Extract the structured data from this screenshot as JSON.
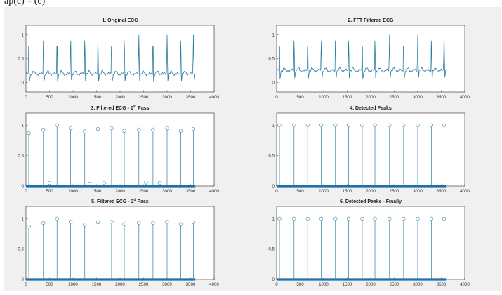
{
  "caption": "ap(c) – (e)",
  "chart_data": [
    {
      "type": "line",
      "title": "1. Original ECG",
      "xlim": [
        0,
        4000
      ],
      "ylim": [
        -0.2,
        1.2
      ],
      "xticks": [
        "0",
        "500",
        "1000",
        "1500",
        "2000",
        "2500",
        "3000",
        "3500",
        "4000"
      ],
      "yticks": [
        "0",
        "0.5",
        "1"
      ],
      "baseline": 0.18,
      "peaks_x": [
        60,
        370,
        660,
        950,
        1250,
        1530,
        1820,
        2090,
        2400,
        2700,
        3000,
        3290,
        3560
      ],
      "peak_value": 1.0,
      "x_end": 3600,
      "color": "#2a7d9e"
    },
    {
      "type": "line",
      "title": "2. FFT Filtered ECG",
      "xlim": [
        0,
        4000
      ],
      "ylim": [
        -0.2,
        1.2
      ],
      "xticks": [
        "0",
        "500",
        "1000",
        "1500",
        "2000",
        "2500",
        "3000",
        "3500",
        "4000"
      ],
      "yticks": [
        "0",
        "0.5",
        "1"
      ],
      "baseline": 0.25,
      "peaks_x": [
        60,
        370,
        660,
        950,
        1250,
        1530,
        1820,
        2090,
        2400,
        2700,
        3000,
        3290,
        3560
      ],
      "peak_value": 1.0,
      "x_end": 3600,
      "color": "#2a7d9e"
    },
    {
      "type": "scatter",
      "title": "3. Filtered ECG - 1st Pass",
      "title_main": "3. Filtered ECG - 1",
      "title_sup": "st",
      "title_tail": " Pass",
      "xlim": [
        0,
        4000
      ],
      "ylim": [
        0,
        1.2
      ],
      "xticks": [
        "0",
        "500",
        "1000",
        "1500",
        "2000",
        "2500",
        "3000",
        "3500",
        "4000"
      ],
      "yticks": [
        "0",
        "0.5",
        "1"
      ],
      "x": [
        60,
        370,
        500,
        660,
        950,
        1250,
        1350,
        1530,
        1660,
        1820,
        2090,
        2400,
        2550,
        2700,
        2840,
        3000,
        3290,
        3560
      ],
      "y": [
        0.87,
        0.93,
        0.05,
        1.0,
        0.95,
        0.9,
        0.04,
        0.94,
        0.05,
        0.95,
        0.91,
        0.93,
        0.06,
        0.93,
        0.05,
        0.95,
        0.91,
        0.94
      ],
      "x_end": 3600,
      "color": "#2a7d9e"
    },
    {
      "type": "scatter",
      "title": "4. Detected Peaks",
      "xlim": [
        0,
        4000
      ],
      "ylim": [
        0,
        1.2
      ],
      "xticks": [
        "0",
        "500",
        "1000",
        "1500",
        "2000",
        "2500",
        "3000",
        "3500",
        "4000"
      ],
      "yticks": [
        "0",
        "0.5",
        "1"
      ],
      "x": [
        60,
        370,
        660,
        950,
        1250,
        1530,
        1820,
        2090,
        2400,
        2700,
        3000,
        3290,
        3560
      ],
      "y": [
        1,
        1,
        1,
        1,
        1,
        1,
        1,
        1,
        1,
        1,
        1,
        1,
        1
      ],
      "x_end": 3600,
      "color": "#2a7d9e"
    },
    {
      "type": "scatter",
      "title": "5. Filtered ECG - 2d Pass",
      "title_main": "5. Filtered ECG - 2",
      "title_sup": "d",
      "title_tail": " Pass",
      "xlim": [
        0,
        4000
      ],
      "ylim": [
        0,
        1.2
      ],
      "xticks": [
        "0",
        "500",
        "1000",
        "1500",
        "2000",
        "2500",
        "3000",
        "3500",
        "4000"
      ],
      "yticks": [
        "0",
        "0.5",
        "1"
      ],
      "x": [
        60,
        370,
        660,
        950,
        1250,
        1530,
        1820,
        2090,
        2400,
        2700,
        3000,
        3290,
        3560
      ],
      "y": [
        0.87,
        0.93,
        1.0,
        0.95,
        0.9,
        0.94,
        0.95,
        0.91,
        0.93,
        0.93,
        0.95,
        0.91,
        0.94
      ],
      "x_end": 3600,
      "color": "#2a7d9e"
    },
    {
      "type": "scatter",
      "title": "6. Detected Peaks - Finally",
      "xlim": [
        0,
        4000
      ],
      "ylim": [
        0,
        1.2
      ],
      "xticks": [
        "0",
        "500",
        "1000",
        "1500",
        "2000",
        "2500",
        "3000",
        "3500",
        "4000"
      ],
      "yticks": [
        "0",
        "0.5",
        "1"
      ],
      "x": [
        60,
        370,
        660,
        950,
        1250,
        1530,
        1820,
        2090,
        2400,
        2700,
        3000,
        3290,
        3560
      ],
      "y": [
        1,
        1,
        1,
        1,
        1,
        1,
        1,
        1,
        1,
        1,
        1,
        1,
        1
      ],
      "x_end": 3600,
      "color": "#2a7d9e"
    }
  ]
}
